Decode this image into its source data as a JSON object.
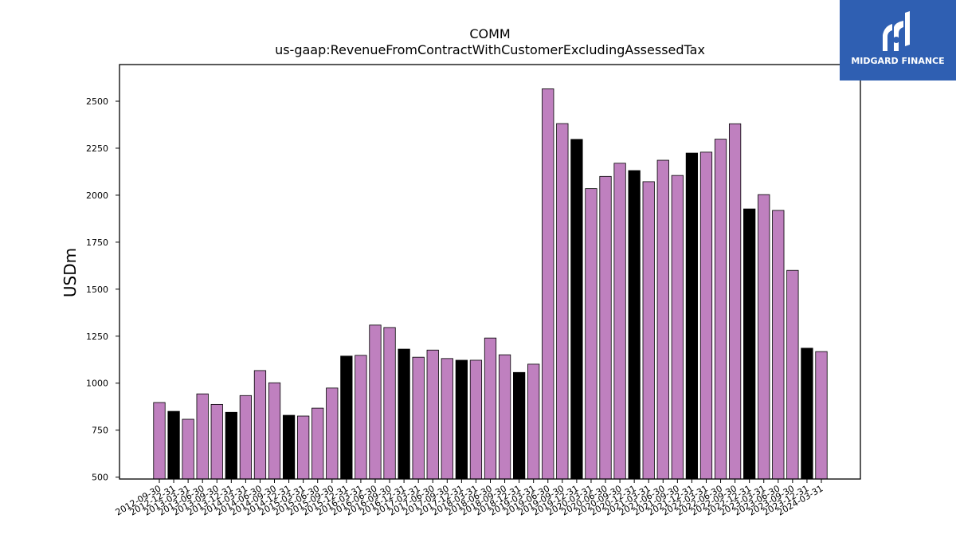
{
  "logo": {
    "text": "MIDGARD FINANCE",
    "background": "#2f5fb2",
    "foreground": "#ffffff"
  },
  "colors": {
    "primary_bar": "#bf80bf",
    "alt_bar": "#000000",
    "bar_edge": "#000000"
  },
  "chart_data": {
    "type": "bar",
    "title": "COMM",
    "subtitle": "us-gaap:RevenueFromContractWithCustomerExcludingAssessedTax",
    "xlabel": "",
    "ylabel": "USDm",
    "ylim": [
      490,
      2695
    ],
    "yticks": [
      500,
      750,
      1000,
      1250,
      1500,
      1750,
      2000,
      2250,
      2500
    ],
    "grid": false,
    "legend": "none",
    "categories": [
      "2012-09-30",
      "2012-12-31",
      "2013-03-31",
      "2013-06-30",
      "2013-09-30",
      "2013-12-31",
      "2014-03-31",
      "2014-06-30",
      "2014-09-30",
      "2014-12-31",
      "2015-03-31",
      "2015-06-30",
      "2015-09-30",
      "2015-12-31",
      "2016-03-31",
      "2016-06-30",
      "2016-09-30",
      "2016-12-31",
      "2017-03-31",
      "2017-06-30",
      "2017-09-30",
      "2017-12-31",
      "2018-03-31",
      "2018-06-30",
      "2018-09-30",
      "2018-12-31",
      "2019-03-31",
      "2019-06-30",
      "2019-09-30",
      "2019-12-31",
      "2020-03-31",
      "2020-06-30",
      "2020-09-30",
      "2020-12-31",
      "2021-03-31",
      "2021-06-30",
      "2021-09-30",
      "2021-12-31",
      "2022-03-31",
      "2022-06-30",
      "2022-09-30",
      "2022-12-31",
      "2023-03-31",
      "2023-06-30",
      "2023-09-30",
      "2023-12-31",
      "2024-03-31"
    ],
    "values": [
      897,
      850,
      808,
      943,
      887,
      845,
      934,
      1067,
      1002,
      829,
      825,
      867,
      974,
      1144,
      1148,
      1309,
      1296,
      1181,
      1138,
      1176,
      1131,
      1122,
      1122,
      1240,
      1151,
      1057,
      1101,
      2566,
      2381,
      2297,
      2035,
      2100,
      2170,
      2131,
      2072,
      2186,
      2105,
      2224,
      2229,
      2298,
      2380,
      1927,
      2003,
      1919,
      1600,
      1186,
      1168
    ],
    "bar_colors": [
      "#bf80bf",
      "#000000",
      "#bf80bf",
      "#bf80bf",
      "#bf80bf",
      "#000000",
      "#bf80bf",
      "#bf80bf",
      "#bf80bf",
      "#000000",
      "#bf80bf",
      "#bf80bf",
      "#bf80bf",
      "#000000",
      "#bf80bf",
      "#bf80bf",
      "#bf80bf",
      "#000000",
      "#bf80bf",
      "#bf80bf",
      "#bf80bf",
      "#000000",
      "#bf80bf",
      "#bf80bf",
      "#bf80bf",
      "#000000",
      "#bf80bf",
      "#bf80bf",
      "#bf80bf",
      "#000000",
      "#bf80bf",
      "#bf80bf",
      "#bf80bf",
      "#000000",
      "#bf80bf",
      "#bf80bf",
      "#bf80bf",
      "#000000",
      "#bf80bf",
      "#bf80bf",
      "#bf80bf",
      "#000000",
      "#bf80bf",
      "#bf80bf",
      "#bf80bf",
      "#000000",
      "#bf80bf"
    ]
  }
}
